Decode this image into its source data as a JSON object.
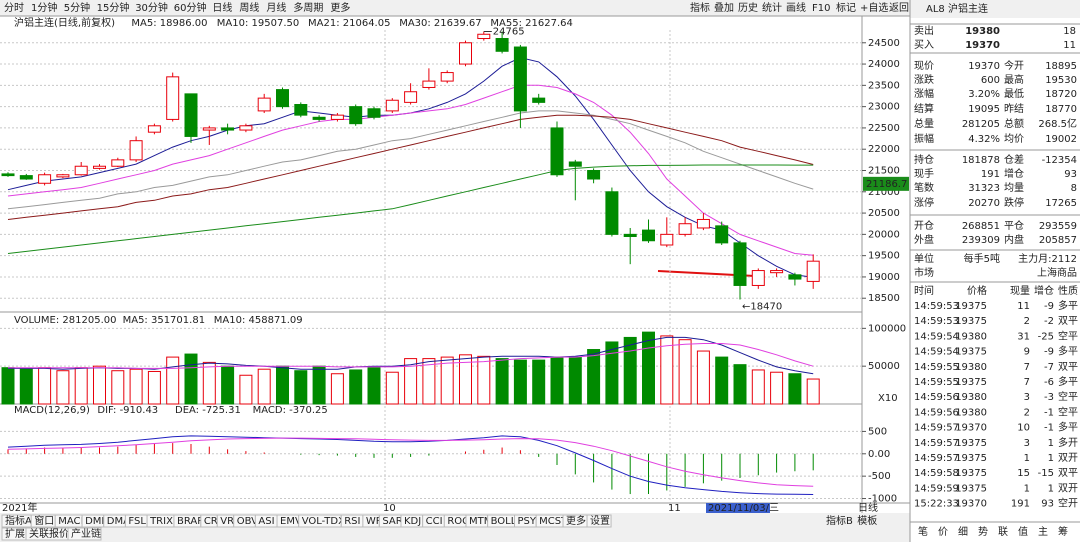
{
  "toolbar": {
    "periods": [
      "分时",
      "1分钟",
      "5分钟",
      "15分钟",
      "30分钟",
      "60分钟",
      "日线",
      "周线",
      "月线",
      "多周期",
      "更多"
    ],
    "tools": [
      "指标",
      "叠加",
      "历史",
      "统计",
      "画线",
      "F10",
      "标记",
      "+自选",
      "返回"
    ]
  },
  "price_panel": {
    "title": "沪铝主连(日线,前复权)",
    "type": "candlestick",
    "open": [
      21420,
      21380,
      21200,
      21350,
      21400,
      21550,
      21600,
      21750,
      22400,
      22700,
      23300,
      22450,
      22500,
      22450,
      22900,
      23400,
      23050,
      22750,
      22700,
      23000,
      22950,
      22900,
      23100,
      23450,
      23600,
      24000,
      24600,
      24600,
      24400,
      23200,
      22500,
      21700,
      21500,
      21000,
      20000,
      20100,
      19750,
      20000,
      20150,
      20200,
      19800,
      18800,
      19100,
      19050,
      18895
    ],
    "high": [
      21460,
      21420,
      21450,
      21420,
      21700,
      21650,
      21800,
      22300,
      22600,
      23800,
      23300,
      22550,
      22600,
      22600,
      23300,
      23450,
      23100,
      22800,
      22850,
      23050,
      23000,
      23200,
      23550,
      23900,
      23850,
      24550,
      24765,
      24765,
      24450,
      23300,
      22650,
      21750,
      21550,
      21100,
      20150,
      20350,
      20400,
      20400,
      20500,
      20300,
      19850,
      19200,
      19200,
      19100,
      19530
    ],
    "low": [
      21350,
      21280,
      21150,
      21320,
      21380,
      21520,
      21580,
      21700,
      22350,
      22650,
      22150,
      22100,
      22350,
      22400,
      22850,
      22950,
      22750,
      22650,
      22650,
      22550,
      22700,
      22850,
      23050,
      23400,
      23550,
      23950,
      24550,
      24250,
      22500,
      23050,
      21350,
      20800,
      21200,
      19950,
      19300,
      19800,
      19700,
      19950,
      20100,
      19750,
      18470,
      18720,
      19000,
      18800,
      18720
    ],
    "close": [
      21380,
      21300,
      21400,
      21400,
      21600,
      21600,
      21750,
      22200,
      22550,
      23700,
      22300,
      22500,
      22450,
      22550,
      23200,
      23000,
      22800,
      22700,
      22800,
      22600,
      22750,
      23150,
      23350,
      23600,
      23800,
      24500,
      24700,
      24300,
      22900,
      23100,
      21400,
      21600,
      21300,
      20000,
      19950,
      19850,
      20000,
      20250,
      20350,
      19800,
      18800,
      19150,
      19150,
      18950,
      19370
    ],
    "up_color": "#e8000b",
    "down_color": "#008a00",
    "ma_series": [
      {
        "name": "MA5: 18986.00",
        "color": "#1c1c96",
        "values": [
          21050,
          21150,
          21250,
          21300,
          21350,
          21450,
          21550,
          21650,
          21850,
          22050,
          22200,
          22300,
          22450,
          22550,
          22600,
          22750,
          22900,
          22850,
          22800,
          22750,
          22800,
          22800,
          22850,
          22950,
          23100,
          23300,
          23600,
          23950,
          24150,
          24050,
          23700,
          23250,
          22700,
          22100,
          21500,
          21000,
          20650,
          20400,
          20200,
          20100,
          19800,
          19500,
          19250,
          19050,
          18990
        ]
      },
      {
        "name": "MA10: 19507.50",
        "color": "#e040e0",
        "values": [
          20900,
          20950,
          21000,
          21050,
          21100,
          21200,
          21300,
          21400,
          21500,
          21650,
          21750,
          21850,
          22000,
          22150,
          22300,
          22450,
          22550,
          22650,
          22700,
          22700,
          22750,
          22800,
          22850,
          22900,
          22950,
          23050,
          23200,
          23350,
          23500,
          23500,
          23450,
          23300,
          23100,
          22800,
          22400,
          21900,
          21300,
          20900,
          20500,
          20250,
          20000,
          19850,
          19700,
          19550,
          19510
        ]
      },
      {
        "name": "MA21: 21064.05",
        "color": "#9a9a9a",
        "values": [
          20600,
          20650,
          20700,
          20750,
          20800,
          20850,
          20950,
          21000,
          21100,
          21150,
          21250,
          21350,
          21400,
          21500,
          21600,
          21700,
          21750,
          21850,
          21950,
          22000,
          22100,
          22200,
          22250,
          22350,
          22450,
          22550,
          22650,
          22750,
          22850,
          22900,
          22900,
          22850,
          22800,
          22700,
          22600,
          22450,
          22300,
          22150,
          21950,
          21800,
          21650,
          21500,
          21350,
          21200,
          21064
        ]
      },
      {
        "name": "MA30: 21639.67",
        "color": "#8b1a1a",
        "values": [
          20350,
          20400,
          20450,
          20500,
          20550,
          20600,
          20650,
          20750,
          20800,
          20900,
          20950,
          21050,
          21100,
          21200,
          21300,
          21400,
          21500,
          21600,
          21700,
          21800,
          21900,
          22000,
          22100,
          22200,
          22300,
          22400,
          22500,
          22600,
          22700,
          22750,
          22800,
          22800,
          22780,
          22750,
          22700,
          22600,
          22500,
          22400,
          22300,
          22200,
          22050,
          21950,
          21850,
          21750,
          21640
        ]
      },
      {
        "name": "MA55: 21627.64",
        "color": "#1a8c1a",
        "values": [
          19550,
          19600,
          19650,
          19700,
          19750,
          19800,
          19850,
          19900,
          19950,
          20000,
          20050,
          20100,
          20150,
          20200,
          20250,
          20300,
          20350,
          20400,
          20450,
          20500,
          20550,
          20600,
          20700,
          20800,
          20900,
          21000,
          21100,
          21200,
          21300,
          21400,
          21500,
          21550,
          21580,
          21600,
          21610,
          21620,
          21620,
          21625,
          21630,
          21630,
          21630,
          21630,
          21630,
          21628,
          21628
        ]
      }
    ],
    "ylim": [
      18200,
      24800
    ],
    "yticks": [
      18500,
      19000,
      19500,
      20000,
      20500,
      21000,
      21500,
      22000,
      22500,
      23000,
      23500,
      24000,
      24500
    ],
    "high_label": "24765",
    "low_label": "←18470",
    "marker": 21186.7
  },
  "x_axis": {
    "labels": [
      "2021年",
      "10",
      "11"
    ],
    "cursor_date": "2021/11/03/三"
  },
  "volume_panel": {
    "title": "VOLUME: 281205.00",
    "values": [
      48000,
      47000,
      48000,
      44000,
      48000,
      50000,
      44000,
      46000,
      43000,
      62000,
      66000,
      55000,
      50000,
      38000,
      46000,
      50000,
      44000,
      50000,
      40000,
      45000,
      48000,
      42000,
      60000,
      60000,
      62000,
      65000,
      63000,
      60000,
      58000,
      58000,
      62000,
      62000,
      72000,
      82000,
      88000,
      95000,
      90000,
      85000,
      70000,
      62000,
      52000,
      45000,
      42000,
      40000,
      33000
    ],
    "ma_series": [
      {
        "name": "MA5: 351701.81",
        "color": "#1c1c96",
        "values": [
          47000,
          47000,
          47000,
          46000,
          47000,
          48000,
          47000,
          47000,
          46000,
          49000,
          52000,
          54000,
          53000,
          51000,
          50000,
          48000,
          46000,
          46000,
          46000,
          49000,
          50000,
          50000,
          52000,
          56000,
          58000,
          60000,
          62000,
          63000,
          63000,
          63000,
          62000,
          63000,
          66000,
          72000,
          78000,
          84000,
          88000,
          88000,
          85000,
          78000,
          68000,
          58000,
          49000,
          44000,
          40000
        ]
      },
      {
        "name": "MA10: 458871.09",
        "color": "#e040e0",
        "values": [
          48000,
          48000,
          48000,
          48000,
          48000,
          48000,
          48000,
          47000,
          47000,
          47000,
          48000,
          49000,
          50000,
          50000,
          50000,
          50000,
          50000,
          50000,
          49000,
          49000,
          49000,
          49000,
          50000,
          52000,
          54000,
          55000,
          56000,
          58000,
          60000,
          61000,
          62000,
          62000,
          64000,
          67000,
          70000,
          74000,
          77000,
          79000,
          80000,
          80000,
          78000,
          72000,
          65000,
          57000,
          50000
        ]
      }
    ],
    "ylim": [
      0,
      115000
    ],
    "yticks": [
      50000,
      100000
    ],
    "scale_label": "X10"
  },
  "macd_panel": {
    "title": "MACD(12,26,9)",
    "dif": {
      "name": "DIF: -910.43",
      "color": "#2020c0",
      "values": [
        150,
        170,
        190,
        200,
        210,
        230,
        260,
        300,
        340,
        380,
        400,
        390,
        380,
        370,
        360,
        350,
        340,
        330,
        320,
        300,
        280,
        270,
        270,
        280,
        300,
        330,
        360,
        400,
        380,
        300,
        180,
        20,
        -150,
        -330,
        -500,
        -620,
        -700,
        -760,
        -800,
        -840,
        -870,
        -890,
        -900,
        -905,
        -910
      ]
    },
    "dea": {
      "name": "DEA: -725.31",
      "color": "#e040e0",
      "values": [
        100,
        110,
        120,
        130,
        140,
        160,
        180,
        200,
        230,
        260,
        290,
        310,
        330,
        340,
        345,
        350,
        350,
        345,
        340,
        335,
        325,
        315,
        305,
        300,
        300,
        305,
        315,
        330,
        340,
        335,
        305,
        250,
        170,
        70,
        -50,
        -170,
        -290,
        -390,
        -470,
        -540,
        -600,
        -650,
        -690,
        -710,
        -725
      ]
    },
    "macd": {
      "name": "MACD: -370.25",
      "values": [
        100,
        120,
        140,
        140,
        140,
        140,
        160,
        200,
        220,
        240,
        220,
        160,
        100,
        60,
        30,
        0,
        -20,
        -30,
        -40,
        -70,
        -90,
        -90,
        -70,
        -40,
        0,
        50,
        90,
        140,
        80,
        -70,
        -250,
        -460,
        -640,
        -800,
        -900,
        -900,
        -820,
        -740,
        -660,
        -600,
        -540,
        -480,
        -420,
        -390,
        -370
      ]
    },
    "ylim": [
      -1100,
      800
    ],
    "yticks": [
      500,
      {
        "value": 0,
        "label": "0.00"
      },
      -500,
      -1000
    ]
  },
  "indicator_tabs": [
    "指标A",
    "窗口",
    "MACD",
    "DMI",
    "DMA",
    "FSL",
    "TRIX",
    "BRAR",
    "CR",
    "VR",
    "OBV",
    "ASI",
    "EMV",
    "VOL-TDX",
    "RSI",
    "WR",
    "SAR",
    "KDJ",
    "CCI",
    "ROC",
    "MTM",
    "BOLL",
    "PSY",
    "MCST",
    "更多",
    "设置"
  ],
  "template_tabs": [
    "指标B",
    "模板"
  ],
  "bottom_tabs": [
    "扩展",
    "关联报价",
    "产业链"
  ],
  "period_tab": "日线",
  "quote": {
    "title": "AL8 沪铝主连",
    "sell": [
      "卖出",
      "19380",
      "18"
    ],
    "buy": [
      "买入",
      "19370",
      "11"
    ],
    "rows": [
      [
        "现价",
        "19370",
        "今开",
        "18895"
      ],
      [
        "涨跌",
        "600",
        "最高",
        "19530"
      ],
      [
        "涨幅",
        "3.20%",
        "最低",
        "18720"
      ],
      [
        "结算",
        "19095",
        "昨结",
        "18770"
      ],
      [
        "总量",
        "281205",
        "总额",
        "268.5亿"
      ],
      [
        "振幅",
        "4.32%",
        "均价",
        "19002"
      ],
      [
        "持仓",
        "181878",
        "仓差",
        "-12354"
      ],
      [
        "现手",
        "191",
        "增仓",
        "93"
      ],
      [
        "笔数",
        "31323",
        "均量",
        "8"
      ],
      [
        "涨停",
        "20270",
        "跌停",
        "17265"
      ],
      [
        "开仓",
        "268851",
        "平仓",
        "293559"
      ],
      [
        "外盘",
        "239309",
        "内盘",
        "205857"
      ]
    ],
    "unit_row": [
      "单位",
      "每手5吨",
      "主力月:2112"
    ],
    "market_row": [
      "市场",
      "上海商品"
    ]
  },
  "ticks": {
    "header": [
      "时间",
      "价格",
      "现量",
      "增仓",
      "性质"
    ],
    "rows": [
      [
        "14:59:53",
        "19375",
        "11",
        "-9",
        "多平"
      ],
      [
        "14:59:53",
        "19375",
        "2",
        "-2",
        "双平"
      ],
      [
        "14:59:54",
        "19380",
        "31",
        "-25",
        "空平"
      ],
      [
        "14:59:54",
        "19375",
        "9",
        "-9",
        "多平"
      ],
      [
        "14:59:55",
        "19380",
        "7",
        "-7",
        "双平"
      ],
      [
        "14:59:55",
        "19375",
        "7",
        "-6",
        "多平"
      ],
      [
        "14:59:56",
        "19380",
        "3",
        "-3",
        "空平"
      ],
      [
        "14:59:56",
        "19380",
        "2",
        "-1",
        "空平"
      ],
      [
        "14:59:57",
        "19370",
        "10",
        "-1",
        "多平"
      ],
      [
        "14:59:57",
        "19375",
        "3",
        "1",
        "多开"
      ],
      [
        "14:59:57",
        "19375",
        "1",
        "1",
        "双开"
      ],
      [
        "14:59:58",
        "19375",
        "15",
        "-15",
        "双平"
      ],
      [
        "14:59:59",
        "19375",
        "1",
        "1",
        "双开"
      ],
      [
        "15:22:33",
        "19370",
        "191",
        "93",
        "空开"
      ]
    ]
  },
  "side_tabs": [
    "笔",
    "价",
    "细",
    "势",
    "联",
    "值",
    "主",
    "筹"
  ]
}
